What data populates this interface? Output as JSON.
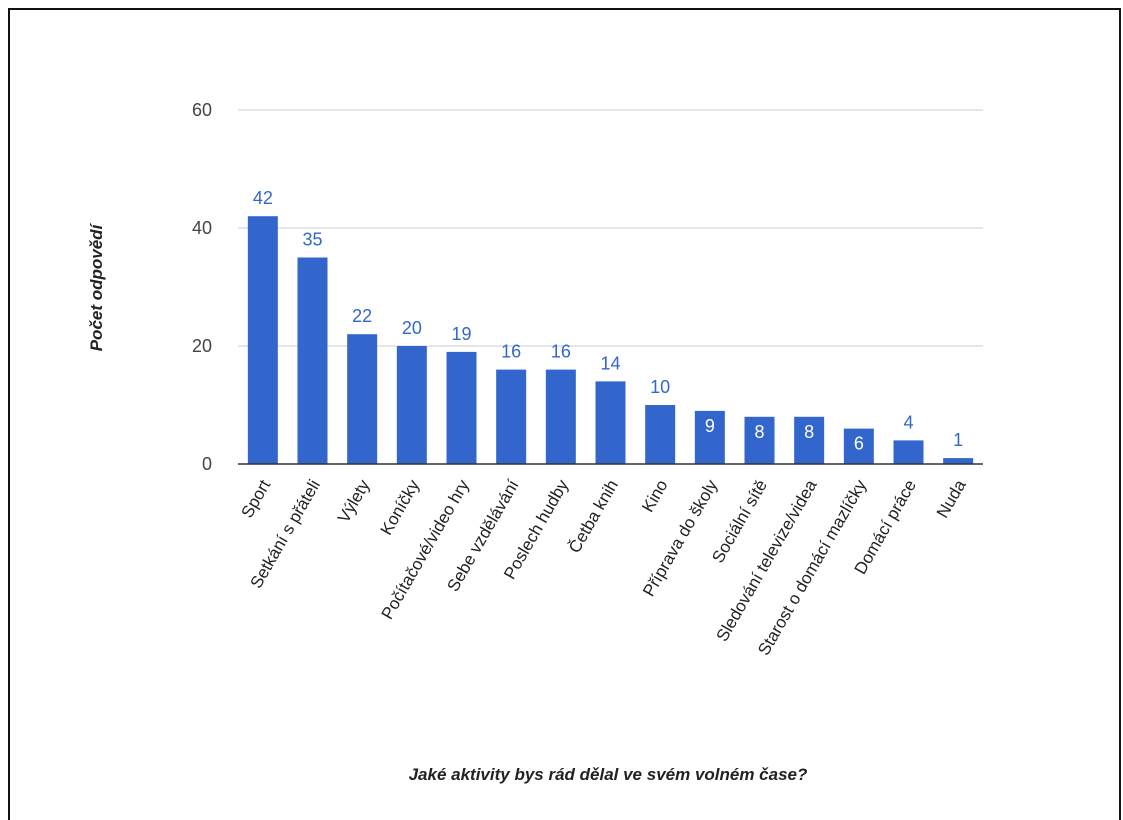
{
  "chart_data": {
    "type": "bar",
    "title": "",
    "xlabel": "Jaké aktivity bys rád dělal ve svém volném čase?",
    "ylabel": "Počet odpovědí",
    "ylim": [
      0,
      60
    ],
    "yticks": [
      0,
      20,
      40,
      60
    ],
    "grid": true,
    "bar_color": "#3366cc",
    "label_color_outside": "#3366cc",
    "label_color_inside": "#ffffff",
    "categories": [
      "Sport",
      "Setkání s přáteli",
      "Výlety",
      "Koníčky",
      "Počítačové/video hry",
      "Sebe vzdělávání",
      "Poslech hudby",
      "Četba knih",
      "Kino",
      "Příprava do školy",
      "Sociální sítě",
      "Sledování televize/videa",
      "Starost o domácí mazlíčky",
      "Domácí práce",
      "Nuda"
    ],
    "values": [
      42,
      35,
      22,
      20,
      19,
      16,
      16,
      14,
      10,
      9,
      8,
      8,
      6,
      4,
      1
    ]
  }
}
